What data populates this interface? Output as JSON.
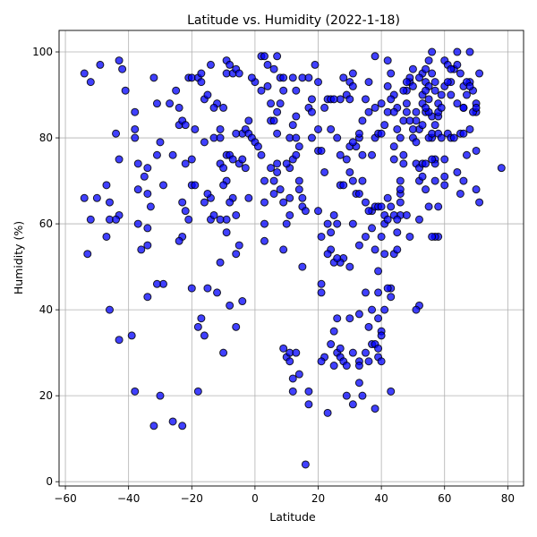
{
  "chart_data": {
    "type": "scatter",
    "title": "Latitude vs. Humidity (2022-1-18)",
    "xlabel": "Latitude",
    "ylabel": "Humidity (%)",
    "xlim": [
      -62,
      85
    ],
    "ylim": [
      -1,
      105
    ],
    "xticks": [
      -60,
      -40,
      -20,
      0,
      20,
      40,
      60,
      80
    ],
    "yticks": [
      0,
      20,
      40,
      60,
      80,
      100
    ],
    "grid": true,
    "marker_fill": "#0000ff",
    "marker_edge": "#000000",
    "marker_alpha": 0.75,
    "points": [
      [
        -54,
        95
      ],
      [
        -52,
        93
      ],
      [
        -49,
        97
      ],
      [
        -50,
        66
      ],
      [
        -54,
        66
      ],
      [
        -52,
        61
      ],
      [
        -46,
        61
      ],
      [
        -47,
        57
      ],
      [
        -46,
        65
      ],
      [
        -47,
        69
      ],
      [
        -46,
        40
      ],
      [
        -53,
        53
      ],
      [
        -43,
        98
      ],
      [
        -42,
        96
      ],
      [
        -41,
        91
      ],
      [
        -44,
        81
      ],
      [
        -43,
        75
      ],
      [
        -43,
        62
      ],
      [
        -43,
        33
      ],
      [
        -38,
        86
      ],
      [
        -38,
        82
      ],
      [
        -37,
        74
      ],
      [
        -37,
        68
      ],
      [
        -38,
        80
      ],
      [
        -35,
        71
      ],
      [
        -34,
        73
      ],
      [
        -34,
        67
      ],
      [
        -33,
        64
      ],
      [
        -34,
        59
      ],
      [
        -34,
        55
      ],
      [
        -34,
        43
      ],
      [
        -36,
        54
      ],
      [
        -39,
        34
      ],
      [
        -38,
        21
      ],
      [
        -32,
        94
      ],
      [
        -31,
        88
      ],
      [
        -30,
        79
      ],
      [
        -31,
        76
      ],
      [
        -29,
        69
      ],
      [
        -29,
        46
      ],
      [
        -31,
        46
      ],
      [
        -32,
        13
      ],
      [
        -27,
        88
      ],
      [
        -25,
        91
      ],
      [
        -24,
        87
      ],
      [
        -26,
        76
      ],
      [
        -24,
        83
      ],
      [
        -23,
        84
      ],
      [
        -22,
        83
      ],
      [
        -22,
        74
      ],
      [
        -21,
        94
      ],
      [
        -20,
        94
      ],
      [
        -19,
        82
      ],
      [
        -23,
        65
      ],
      [
        -22,
        63
      ],
      [
        -21,
        61
      ],
      [
        -20,
        45
      ],
      [
        -23,
        57
      ],
      [
        -24,
        56
      ],
      [
        -26,
        14
      ],
      [
        -23,
        13
      ],
      [
        -20,
        75
      ],
      [
        -20,
        69
      ],
      [
        -18,
        21
      ],
      [
        -18,
        94
      ],
      [
        -17,
        95
      ],
      [
        -17,
        93
      ],
      [
        -16,
        89
      ],
      [
        -15,
        90
      ],
      [
        -14,
        97
      ],
      [
        -13,
        80
      ],
      [
        -12,
        88
      ],
      [
        -11,
        82
      ],
      [
        -10,
        87
      ],
      [
        -9,
        98
      ],
      [
        -8,
        97
      ],
      [
        -9,
        95
      ],
      [
        -7,
        95
      ],
      [
        -6,
        96
      ],
      [
        -5,
        95
      ],
      [
        -11,
        74
      ],
      [
        -10,
        73
      ],
      [
        -9,
        76
      ],
      [
        -9,
        70
      ],
      [
        -8,
        76
      ],
      [
        -7,
        75
      ],
      [
        -5,
        74
      ],
      [
        -4,
        81
      ],
      [
        -4,
        75
      ],
      [
        -3,
        73
      ],
      [
        -6,
        62
      ],
      [
        -7,
        66
      ],
      [
        -8,
        65
      ],
      [
        -9,
        61
      ],
      [
        -11,
        61
      ],
      [
        -14,
        61
      ],
      [
        -13,
        62
      ],
      [
        -14,
        66
      ],
      [
        -12,
        44
      ],
      [
        -11,
        51
      ],
      [
        -10,
        30
      ],
      [
        -9,
        58
      ],
      [
        -6,
        53
      ],
      [
        -5,
        55
      ],
      [
        -6,
        36
      ],
      [
        -8,
        41
      ],
      [
        -4,
        42
      ],
      [
        -15,
        45
      ],
      [
        -16,
        34
      ],
      [
        -17,
        38
      ],
      [
        -18,
        36
      ],
      [
        -19,
        69
      ],
      [
        -16,
        65
      ],
      [
        -15,
        67
      ],
      [
        -16,
        79
      ],
      [
        -13,
        87
      ],
      [
        -11,
        80
      ],
      [
        -6,
        81
      ],
      [
        -3,
        82
      ],
      [
        -2,
        84
      ],
      [
        -2,
        81
      ],
      [
        -1,
        80
      ],
      [
        0,
        79
      ],
      [
        1,
        78
      ],
      [
        2,
        76
      ],
      [
        0,
        93
      ],
      [
        -1,
        94
      ],
      [
        2,
        99
      ],
      [
        3,
        99
      ],
      [
        4,
        97
      ],
      [
        4,
        92
      ],
      [
        5,
        88
      ],
      [
        5,
        84
      ],
      [
        6,
        84
      ],
      [
        6,
        96
      ],
      [
        7,
        99
      ],
      [
        8,
        94
      ],
      [
        9,
        94
      ],
      [
        9,
        91
      ],
      [
        7,
        86
      ],
      [
        8,
        88
      ],
      [
        7,
        81
      ],
      [
        7,
        74
      ],
      [
        7,
        72
      ],
      [
        6,
        70
      ],
      [
        6,
        67
      ],
      [
        3,
        70
      ],
      [
        3,
        65
      ],
      [
        3,
        60
      ],
      [
        3,
        56
      ],
      [
        8,
        68
      ],
      [
        9,
        65
      ],
      [
        9,
        54
      ],
      [
        10,
        60
      ],
      [
        11,
        62
      ],
      [
        11,
        66
      ],
      [
        11,
        73
      ],
      [
        10,
        74
      ],
      [
        12,
        75
      ],
      [
        11,
        80
      ],
      [
        12,
        83
      ],
      [
        13,
        85
      ],
      [
        13,
        80
      ],
      [
        14,
        78
      ],
      [
        13,
        76
      ],
      [
        14,
        70
      ],
      [
        15,
        66
      ],
      [
        15,
        64
      ],
      [
        12,
        94
      ],
      [
        13,
        91
      ],
      [
        15,
        94
      ],
      [
        17,
        94
      ],
      [
        17,
        87
      ],
      [
        18,
        86
      ],
      [
        18,
        89
      ],
      [
        19,
        97
      ],
      [
        20,
        82
      ],
      [
        20,
        77
      ],
      [
        21,
        77
      ],
      [
        22,
        72
      ],
      [
        20,
        63
      ],
      [
        21,
        57
      ],
      [
        21,
        46
      ],
      [
        21,
        44
      ],
      [
        24,
        54
      ],
      [
        23,
        53
      ],
      [
        22,
        29
      ],
      [
        23,
        16
      ],
      [
        24,
        32
      ],
      [
        25,
        27
      ],
      [
        25,
        35
      ],
      [
        26,
        30
      ],
      [
        26,
        38
      ],
      [
        27,
        31
      ],
      [
        27,
        29
      ],
      [
        28,
        28
      ],
      [
        29,
        27
      ],
      [
        29,
        20
      ],
      [
        30,
        50
      ],
      [
        30,
        38
      ],
      [
        31,
        30
      ],
      [
        31,
        18
      ],
      [
        9,
        31
      ],
      [
        10,
        29
      ],
      [
        11,
        30
      ],
      [
        11,
        28
      ],
      [
        12,
        24
      ],
      [
        12,
        21
      ],
      [
        14,
        25
      ],
      [
        13,
        30
      ],
      [
        15,
        50
      ],
      [
        16,
        63
      ],
      [
        17,
        21
      ],
      [
        17,
        18
      ],
      [
        16,
        4
      ],
      [
        21,
        28
      ],
      [
        24,
        82
      ],
      [
        23,
        89
      ],
      [
        27,
        89
      ],
      [
        26,
        80
      ],
      [
        27,
        76
      ],
      [
        27,
        69
      ],
      [
        28,
        69
      ],
      [
        29,
        75
      ],
      [
        30,
        78
      ],
      [
        29,
        90
      ],
      [
        30,
        93
      ],
      [
        31,
        95
      ],
      [
        32,
        78
      ],
      [
        33,
        80
      ],
      [
        32,
        67
      ],
      [
        33,
        67
      ],
      [
        33,
        55
      ],
      [
        33,
        39
      ],
      [
        33,
        28
      ],
      [
        33,
        27
      ],
      [
        33,
        23
      ],
      [
        34,
        20
      ],
      [
        35,
        30
      ],
      [
        36,
        28
      ],
      [
        36,
        36
      ],
      [
        37,
        40
      ],
      [
        37,
        32
      ],
      [
        38,
        32
      ],
      [
        39,
        31
      ],
      [
        39,
        29
      ],
      [
        38,
        17
      ],
      [
        39,
        38
      ],
      [
        39,
        44
      ],
      [
        39,
        49
      ],
      [
        38,
        54
      ],
      [
        37,
        59
      ],
      [
        37,
        63
      ],
      [
        38,
        64
      ],
      [
        39,
        64
      ],
      [
        40,
        64
      ],
      [
        41,
        62
      ],
      [
        41,
        60
      ],
      [
        40,
        57
      ],
      [
        41,
        53
      ],
      [
        42,
        61
      ],
      [
        43,
        45
      ],
      [
        42,
        45
      ],
      [
        43,
        43
      ],
      [
        41,
        40
      ],
      [
        43,
        21
      ],
      [
        40,
        35
      ],
      [
        40,
        34
      ],
      [
        44,
        53
      ],
      [
        45,
        54
      ],
      [
        45,
        58
      ],
      [
        46,
        62
      ],
      [
        46,
        65
      ],
      [
        46,
        67
      ],
      [
        46,
        70
      ],
      [
        47,
        74
      ],
      [
        47,
        76
      ],
      [
        46,
        80
      ],
      [
        47,
        84
      ],
      [
        48,
        88
      ],
      [
        48,
        91
      ],
      [
        49,
        93
      ],
      [
        49,
        94
      ],
      [
        50,
        96
      ],
      [
        50,
        92
      ],
      [
        51,
        84
      ],
      [
        50,
        80
      ],
      [
        51,
        74
      ],
      [
        52,
        73
      ],
      [
        52,
        70
      ],
      [
        52,
        82
      ],
      [
        53,
        83
      ],
      [
        53,
        95
      ],
      [
        54,
        96
      ],
      [
        54,
        93
      ],
      [
        55,
        92
      ],
      [
        55,
        89
      ],
      [
        56,
        85
      ],
      [
        56,
        80
      ],
      [
        57,
        75
      ],
      [
        57,
        70
      ],
      [
        58,
        64
      ],
      [
        58,
        57
      ],
      [
        57,
        57
      ],
      [
        56,
        57
      ],
      [
        55,
        64
      ],
      [
        54,
        68
      ],
      [
        53,
        74
      ],
      [
        52,
        61
      ],
      [
        52,
        41
      ],
      [
        51,
        40
      ],
      [
        55,
        98
      ],
      [
        56,
        95
      ],
      [
        57,
        91
      ],
      [
        58,
        88
      ],
      [
        59,
        90
      ],
      [
        60,
        98
      ],
      [
        61,
        97
      ],
      [
        62,
        93
      ],
      [
        62,
        90
      ],
      [
        63,
        96
      ],
      [
        64,
        100
      ],
      [
        64,
        97
      ],
      [
        65,
        95
      ],
      [
        66,
        92
      ],
      [
        67,
        90
      ],
      [
        68,
        100
      ],
      [
        68,
        93
      ],
      [
        69,
        91
      ],
      [
        70,
        88
      ],
      [
        70,
        86
      ],
      [
        71,
        95
      ],
      [
        71,
        65
      ],
      [
        70,
        68
      ],
      [
        70,
        77
      ],
      [
        66,
        70
      ],
      [
        64,
        72
      ],
      [
        65,
        67
      ],
      [
        60,
        75
      ],
      [
        60,
        71
      ],
      [
        60,
        69
      ],
      [
        61,
        81
      ],
      [
        62,
        80
      ],
      [
        63,
        80
      ],
      [
        65,
        81
      ],
      [
        66,
        81
      ],
      [
        67,
        76
      ],
      [
        68,
        82
      ],
      [
        78,
        73
      ],
      [
        31,
        92
      ],
      [
        34,
        76
      ],
      [
        34,
        70
      ],
      [
        35,
        65
      ],
      [
        36,
        63
      ],
      [
        37,
        76
      ],
      [
        38,
        80
      ],
      [
        39,
        81
      ],
      [
        40,
        81
      ],
      [
        41,
        83
      ],
      [
        42,
        86
      ],
      [
        42,
        92
      ],
      [
        43,
        95
      ],
      [
        44,
        90
      ],
      [
        45,
        87
      ],
      [
        40,
        88
      ],
      [
        38,
        87
      ],
      [
        36,
        86
      ],
      [
        34,
        84
      ],
      [
        33,
        81
      ],
      [
        31,
        79
      ],
      [
        30,
        72
      ],
      [
        36,
        93
      ],
      [
        35,
        89
      ],
      [
        38,
        99
      ],
      [
        42,
        98
      ],
      [
        43,
        89
      ],
      [
        44,
        86
      ],
      [
        45,
        82
      ],
      [
        44,
        78
      ],
      [
        44,
        75
      ],
      [
        42,
        66
      ],
      [
        43,
        64
      ],
      [
        44,
        62
      ],
      [
        45,
        61
      ],
      [
        48,
        62
      ],
      [
        49,
        57
      ],
      [
        50,
        82
      ],
      [
        51,
        86
      ],
      [
        53,
        88
      ],
      [
        53,
        90
      ],
      [
        54,
        86
      ],
      [
        55,
        80
      ],
      [
        56,
        81
      ],
      [
        57,
        83
      ],
      [
        58,
        85
      ],
      [
        58,
        81
      ],
      [
        58,
        86
      ],
      [
        59,
        87
      ],
      [
        60,
        92
      ],
      [
        61,
        93
      ],
      [
        62,
        96
      ],
      [
        64,
        88
      ],
      [
        66,
        87
      ],
      [
        67,
        93
      ],
      [
        68,
        92
      ],
      [
        69,
        86
      ],
      [
        70,
        87
      ],
      [
        56,
        100
      ],
      [
        57,
        74
      ],
      [
        56,
        75
      ],
      [
        55,
        86
      ],
      [
        54,
        87
      ],
      [
        54,
        91
      ],
      [
        57,
        93
      ],
      [
        48,
        93
      ],
      [
        47,
        91
      ],
      [
        49,
        84
      ],
      [
        51,
        79
      ],
      [
        53,
        71
      ],
      [
        54,
        74
      ],
      [
        28,
        52
      ],
      [
        27,
        51
      ],
      [
        25,
        51
      ],
      [
        24,
        58
      ],
      [
        23,
        60
      ],
      [
        25,
        62
      ],
      [
        26,
        60
      ],
      [
        31,
        60
      ],
      [
        35,
        57
      ],
      [
        24,
        89
      ],
      [
        25,
        89
      ],
      [
        28,
        94
      ],
      [
        30,
        89
      ],
      [
        -44,
        61
      ],
      [
        -37,
        60
      ],
      [
        -30,
        20
      ],
      [
        -10,
        69
      ],
      [
        -2,
        66
      ],
      [
        2,
        91
      ],
      [
        5,
        73
      ],
      [
        14,
        68
      ],
      [
        18,
        80
      ],
      [
        20,
        93
      ],
      [
        22,
        87
      ],
      [
        26,
        52
      ],
      [
        31,
        70
      ],
      [
        35,
        44
      ],
      [
        40,
        28
      ],
      [
        46,
        68
      ],
      [
        48,
        86
      ],
      [
        52,
        94
      ],
      [
        59,
        80
      ],
      [
        66,
        87
      ]
    ]
  }
}
